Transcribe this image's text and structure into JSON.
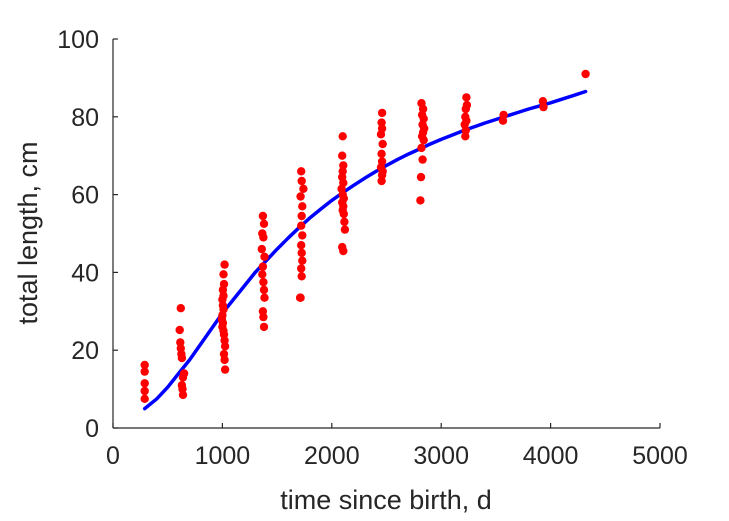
{
  "chart_data": {
    "type": "scatter",
    "title": "",
    "xlabel": "time since birth, d",
    "ylabel": "total length, cm",
    "xlim": [
      0,
      5000
    ],
    "ylim": [
      0,
      100
    ],
    "xticks": [
      0,
      1000,
      2000,
      3000,
      4000,
      5000
    ],
    "yticks": [
      0,
      20,
      40,
      60,
      80,
      100
    ],
    "grid": false,
    "legend": "none",
    "colors": {
      "points": "#ff0000",
      "fit": "#0000ff",
      "axis": "#262626"
    },
    "series": [
      {
        "kind": "scatter",
        "points": [
          [
            290,
            16.2
          ],
          [
            290,
            14.5
          ],
          [
            290,
            11.5
          ],
          [
            290,
            9.5
          ],
          [
            290,
            7.5
          ],
          [
            620,
            30.8
          ],
          [
            610,
            25.2
          ],
          [
            615,
            22.0
          ],
          [
            620,
            20.5
          ],
          [
            625,
            19.0
          ],
          [
            630,
            18.0
          ],
          [
            650,
            14.0
          ],
          [
            640,
            13.0
          ],
          [
            630,
            11.0
          ],
          [
            635,
            10.0
          ],
          [
            640,
            8.5
          ],
          [
            1020,
            42.0
          ],
          [
            1010,
            39.5
          ],
          [
            1015,
            37.0
          ],
          [
            1005,
            35.5
          ],
          [
            1010,
            34.0
          ],
          [
            1000,
            33.0
          ],
          [
            1005,
            31.5
          ],
          [
            1010,
            30.5
          ],
          [
            1000,
            29.0
          ],
          [
            995,
            28.0
          ],
          [
            1005,
            27.0
          ],
          [
            1000,
            26.0
          ],
          [
            1010,
            25.0
          ],
          [
            1015,
            24.0
          ],
          [
            1020,
            22.5
          ],
          [
            1025,
            21.0
          ],
          [
            1015,
            19.0
          ],
          [
            1020,
            17.5
          ],
          [
            1025,
            15.0
          ],
          [
            1370,
            54.5
          ],
          [
            1380,
            52.5
          ],
          [
            1365,
            50.0
          ],
          [
            1375,
            49.0
          ],
          [
            1360,
            46.0
          ],
          [
            1385,
            44.0
          ],
          [
            1370,
            41.5
          ],
          [
            1365,
            39.5
          ],
          [
            1375,
            37.5
          ],
          [
            1380,
            35.5
          ],
          [
            1385,
            33.5
          ],
          [
            1370,
            30.0
          ],
          [
            1375,
            28.5
          ],
          [
            1380,
            26.0
          ],
          [
            1720,
            66.0
          ],
          [
            1725,
            63.5
          ],
          [
            1740,
            61.5
          ],
          [
            1715,
            59.5
          ],
          [
            1730,
            57.0
          ],
          [
            1725,
            54.5
          ],
          [
            1720,
            52.0
          ],
          [
            1730,
            49.5
          ],
          [
            1720,
            47.0
          ],
          [
            1725,
            45.0
          ],
          [
            1730,
            43.0
          ],
          [
            1720,
            41.0
          ],
          [
            1725,
            39.0
          ],
          [
            1710,
            33.5
          ],
          [
            1715,
            33.5
          ],
          [
            2100,
            75.0
          ],
          [
            2095,
            70.0
          ],
          [
            2105,
            67.5
          ],
          [
            2100,
            66.0
          ],
          [
            2095,
            64.5
          ],
          [
            2105,
            63.0
          ],
          [
            2090,
            61.5
          ],
          [
            2100,
            60.0
          ],
          [
            2110,
            59.0
          ],
          [
            2095,
            58.0
          ],
          [
            2105,
            57.0
          ],
          [
            2100,
            56.0
          ],
          [
            2110,
            55.0
          ],
          [
            2115,
            53.0
          ],
          [
            2120,
            51.0
          ],
          [
            2095,
            46.5
          ],
          [
            2105,
            45.5
          ],
          [
            2460,
            81.0
          ],
          [
            2455,
            78.5
          ],
          [
            2460,
            77.0
          ],
          [
            2450,
            75.5
          ],
          [
            2465,
            73.0
          ],
          [
            2455,
            70.5
          ],
          [
            2460,
            68.5
          ],
          [
            2450,
            67.0
          ],
          [
            2465,
            66.0
          ],
          [
            2460,
            65.0
          ],
          [
            2455,
            63.5
          ],
          [
            2820,
            83.5
          ],
          [
            2835,
            82.0
          ],
          [
            2825,
            80.5
          ],
          [
            2840,
            79.5
          ],
          [
            2830,
            78.0
          ],
          [
            2845,
            77.0
          ],
          [
            2835,
            76.0
          ],
          [
            2825,
            75.0
          ],
          [
            2840,
            74.0
          ],
          [
            2820,
            72.0
          ],
          [
            2830,
            69.0
          ],
          [
            2815,
            64.5
          ],
          [
            2810,
            58.5
          ],
          [
            3230,
            85.0
          ],
          [
            3235,
            83.0
          ],
          [
            3225,
            82.0
          ],
          [
            3220,
            80.0
          ],
          [
            3230,
            79.0
          ],
          [
            3215,
            78.0
          ],
          [
            3225,
            76.5
          ],
          [
            3220,
            75.0
          ],
          [
            3570,
            80.5
          ],
          [
            3565,
            79.0
          ],
          [
            3930,
            84.0
          ],
          [
            3935,
            82.5
          ],
          [
            4320,
            91.0
          ]
        ]
      },
      {
        "kind": "line",
        "points": [
          [
            290,
            5.0
          ],
          [
            400,
            7.5
          ],
          [
            500,
            10.5
          ],
          [
            600,
            14.0
          ],
          [
            700,
            17.5
          ],
          [
            800,
            21.5
          ],
          [
            900,
            25.5
          ],
          [
            1000,
            29.5
          ],
          [
            1100,
            33.0
          ],
          [
            1200,
            36.5
          ],
          [
            1300,
            40.0
          ],
          [
            1400,
            43.0
          ],
          [
            1500,
            46.0
          ],
          [
            1600,
            48.8
          ],
          [
            1700,
            51.5
          ],
          [
            1800,
            54.0
          ],
          [
            1900,
            56.3
          ],
          [
            2000,
            58.5
          ],
          [
            2100,
            60.5
          ],
          [
            2200,
            62.4
          ],
          [
            2300,
            64.2
          ],
          [
            2400,
            65.9
          ],
          [
            2500,
            67.5
          ],
          [
            2600,
            69.0
          ],
          [
            2700,
            70.4
          ],
          [
            2800,
            71.7
          ],
          [
            2900,
            73.0
          ],
          [
            3000,
            74.2
          ],
          [
            3100,
            75.3
          ],
          [
            3200,
            76.4
          ],
          [
            3300,
            77.4
          ],
          [
            3400,
            78.4
          ],
          [
            3500,
            79.3
          ],
          [
            3600,
            80.2
          ],
          [
            3700,
            81.1
          ],
          [
            3800,
            82.0
          ],
          [
            3900,
            82.8
          ],
          [
            4000,
            83.6
          ],
          [
            4100,
            84.5
          ],
          [
            4200,
            85.4
          ],
          [
            4320,
            86.5
          ]
        ]
      }
    ]
  }
}
